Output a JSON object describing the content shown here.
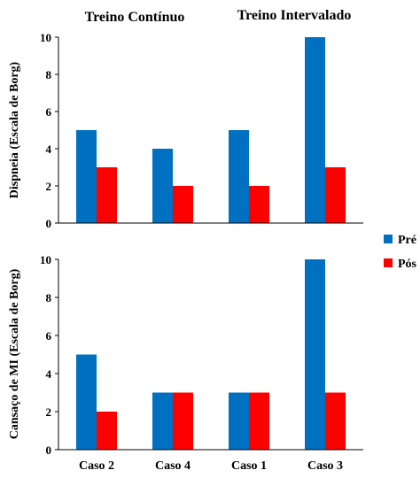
{
  "colors": {
    "pre": "#0070c0",
    "pos": "#ff0000",
    "axis": "#000000"
  },
  "group_titles": [
    "Treino Contínuo",
    "Treino Intervalado"
  ],
  "legend": {
    "placement": "right",
    "items": [
      "Pré",
      "Pós"
    ]
  },
  "chart_data": [
    {
      "type": "bar",
      "ylabel": "Dispneia (Escala de Borg)",
      "categories": [
        "Caso 2",
        "Caso 4",
        "Caso 1",
        "Caso 3"
      ],
      "yticks": [
        "0",
        "2",
        "4",
        "6",
        "8",
        "10"
      ],
      "ylim": [
        0,
        10
      ],
      "grid": false,
      "series": [
        {
          "name": "Pré",
          "values": [
            5,
            4,
            5,
            10
          ]
        },
        {
          "name": "Pós",
          "values": [
            3,
            2,
            2,
            3
          ]
        }
      ]
    },
    {
      "type": "bar",
      "ylabel": "Cansaço de MI (Escala de Borg)",
      "categories": [
        "Caso 2",
        "Caso 4",
        "Caso 1",
        "Caso 3"
      ],
      "yticks": [
        "0",
        "2",
        "4",
        "6",
        "8",
        "10"
      ],
      "ylim": [
        0,
        10
      ],
      "grid": false,
      "series": [
        {
          "name": "Pré",
          "values": [
            5,
            3,
            3,
            10
          ]
        },
        {
          "name": "Pós",
          "values": [
            2,
            3,
            3,
            3
          ]
        }
      ]
    }
  ]
}
